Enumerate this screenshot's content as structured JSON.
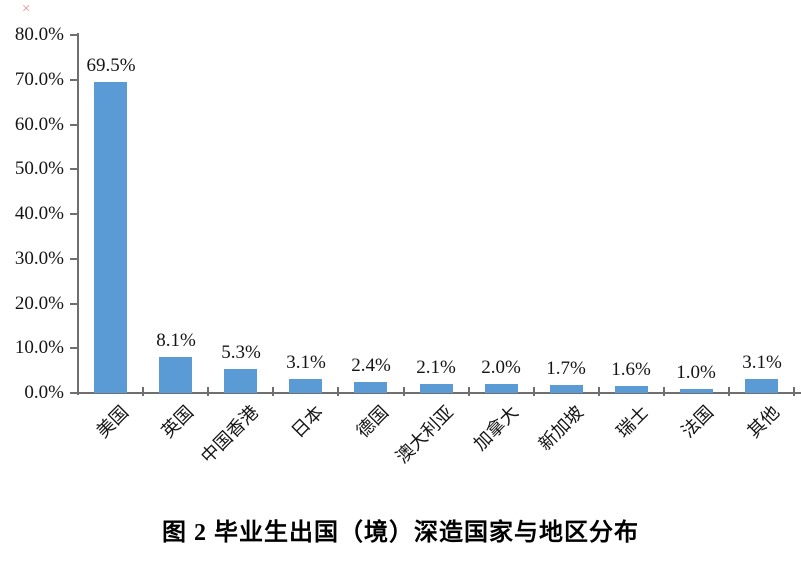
{
  "page": {
    "background": "#ffffff"
  },
  "broken_image_icon": {
    "glyph": "×",
    "color": "#dd9090"
  },
  "chart_data": {
    "type": "bar",
    "title": "图 2 毕业生出国（境）深造国家与地区分布",
    "categories": [
      "美国",
      "英国",
      "中国香港",
      "日本",
      "德国",
      "澳大利亚",
      "加拿大",
      "新加坡",
      "瑞士",
      "法国",
      "其他"
    ],
    "values": [
      69.5,
      8.1,
      5.3,
      3.1,
      2.4,
      2.1,
      2.0,
      1.7,
      1.6,
      1.0,
      3.1
    ],
    "data_labels": [
      "69.5%",
      "8.1%",
      "5.3%",
      "3.1%",
      "2.4%",
      "2.1%",
      "2.0%",
      "1.7%",
      "1.6%",
      "1.0%",
      "3.1%"
    ],
    "xlabel": "",
    "ylabel": "",
    "ylim": [
      0,
      80
    ],
    "y_tick_interval": 10,
    "y_tick_labels": [
      "0.0%",
      "10.0%",
      "20.0%",
      "30.0%",
      "40.0%",
      "50.0%",
      "60.0%",
      "70.0%",
      "80.0%"
    ],
    "y_tick_values": [
      0,
      10,
      20,
      30,
      40,
      50,
      60,
      70,
      80
    ],
    "grid": false,
    "legend": null,
    "bar_color": "#5B9BD5",
    "axis_color": "#6f6f6f",
    "text_color": "#141414"
  }
}
